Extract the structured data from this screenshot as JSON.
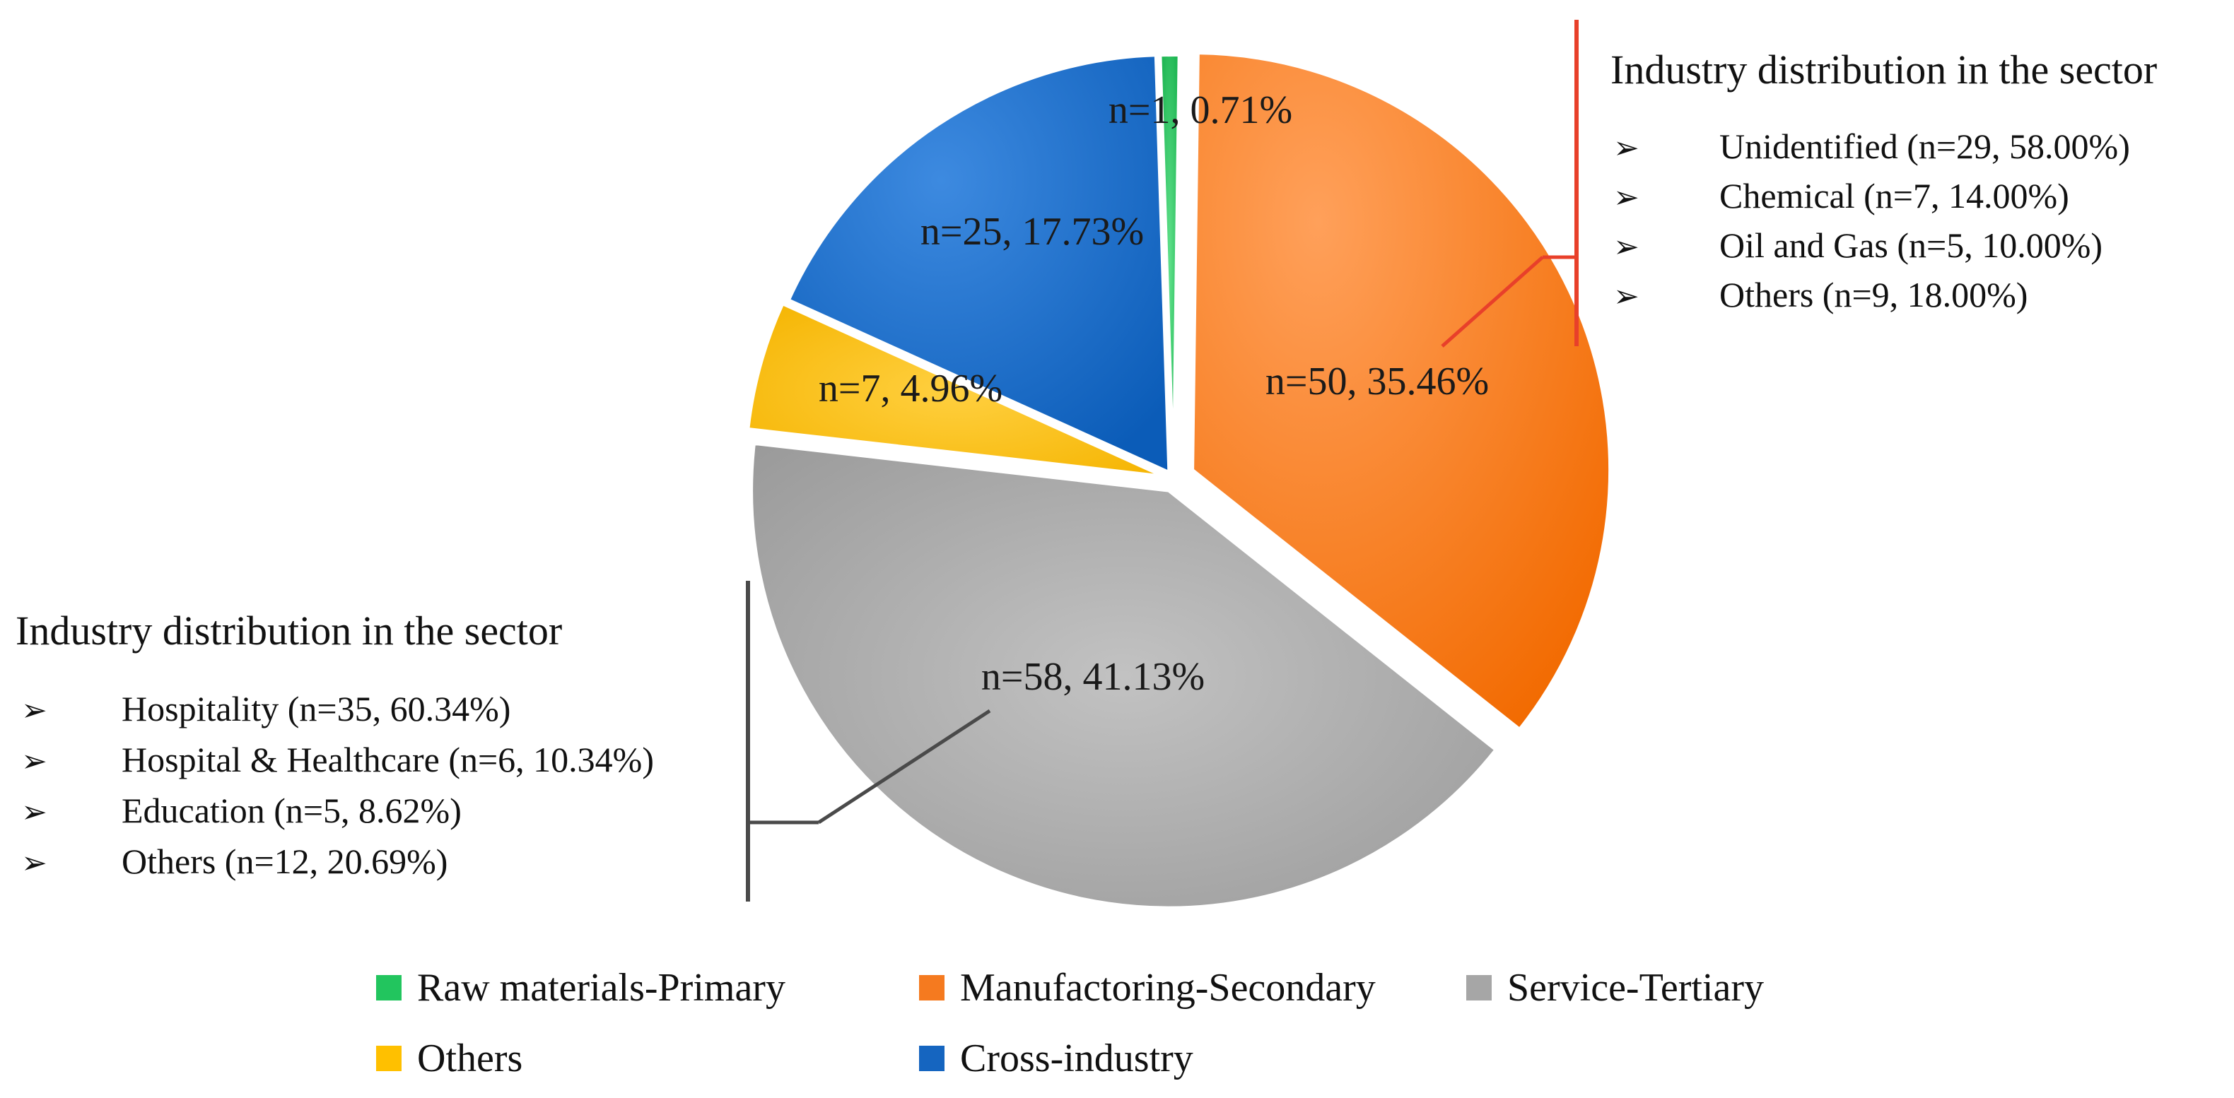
{
  "chart_data": {
    "type": "pie",
    "title": "",
    "slices": [
      {
        "name": "Raw materials-Primary",
        "n": 1,
        "percent": 0.71,
        "label": "n=1, 0.71%",
        "color": "#22c55e"
      },
      {
        "name": "Manufactoring-Secondary",
        "n": 50,
        "percent": 35.46,
        "label": "n=50, 35.46%",
        "color": "#f57a1f"
      },
      {
        "name": "Service-Tertiary",
        "n": 58,
        "percent": 41.13,
        "label": "n=58, 41.13%",
        "color": "#a6a6a6"
      },
      {
        "name": "Others",
        "n": 7,
        "percent": 4.96,
        "label": "n=7, 4.96%",
        "color": "#ffc000"
      },
      {
        "name": "Cross-industry",
        "n": 25,
        "percent": 17.73,
        "label": "n=25, 17.73%",
        "color": "#1565c0"
      }
    ],
    "annotations": {
      "secondary": {
        "title": "Industry distribution in the sector",
        "bullet": "➢",
        "items": [
          "Unidentified (n=29, 58.00%)",
          "Chemical (n=7, 14.00%)",
          "Oil and Gas (n=5, 10.00%)",
          "Others (n=9, 18.00%)"
        ],
        "line_color": "#e8402a"
      },
      "tertiary": {
        "title": "Industry distribution in the sector",
        "bullet": "➢",
        "items": [
          "Hospitality (n=35, 60.34%)",
          "Hospital & Healthcare (n=6, 10.34%)",
          "Education (n=5, 8.62%)",
          "Others (n=12, 20.69%)"
        ],
        "line_color": "#4a4a4a"
      }
    },
    "legend": [
      {
        "label": "Raw materials-Primary",
        "color": "#22c55e"
      },
      {
        "label": "Manufactoring-Secondary",
        "color": "#f57a1f"
      },
      {
        "label": "Service-Tertiary",
        "color": "#a6a6a6"
      },
      {
        "label": "Others",
        "color": "#ffc000"
      },
      {
        "label": "Cross-industry",
        "color": "#1565c0"
      }
    ]
  }
}
